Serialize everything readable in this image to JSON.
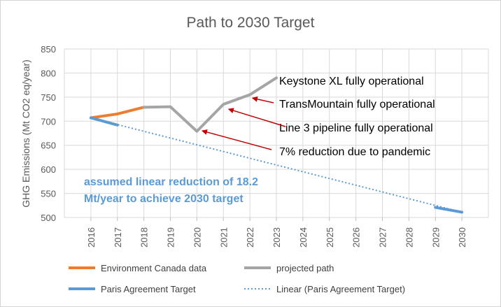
{
  "chart_data": {
    "type": "line",
    "title": "Path to 2030 Target",
    "ylabel": "GHG Emissions (Mt CO2 eq/year)",
    "xlabel": "",
    "ylim": [
      500,
      850
    ],
    "yticks": [
      "850",
      "800",
      "750",
      "700",
      "650",
      "600",
      "550",
      "500"
    ],
    "categories": [
      "2016",
      "2017",
      "2018",
      "2019",
      "2020",
      "2021",
      "2022",
      "2023",
      "2024",
      "2025",
      "2026",
      "2027",
      "2028",
      "2029",
      "2030"
    ],
    "grid": true,
    "legend_position": "bottom",
    "series": [
      {
        "name": "Environment Canada data",
        "color": "#ed7d31",
        "style": "solid",
        "width": 4,
        "x": [
          2016,
          2017,
          2018
        ],
        "y": [
          707,
          715,
          729
        ]
      },
      {
        "name": "projected path",
        "color": "#a5a5a5",
        "style": "solid",
        "width": 4,
        "x": [
          2018,
          2019,
          2020,
          2021,
          2022,
          2023
        ],
        "y": [
          729,
          730,
          679,
          735,
          755,
          790
        ]
      },
      {
        "name": "Paris Agreement Target",
        "color": "#5b9bd5",
        "style": "solid",
        "width": 4,
        "x": [
          2016,
          2017,
          2029,
          2030
        ],
        "y": [
          707,
          692,
          521,
          511
        ],
        "segments": [
          [
            0,
            1
          ],
          [
            2,
            3
          ]
        ]
      },
      {
        "name": "Linear (Paris Agreement Target)",
        "color": "#5b9bd5",
        "style": "dotted",
        "width": 2,
        "x": [
          2016,
          2030
        ],
        "y": [
          707,
          511
        ]
      }
    ],
    "annotations": [
      {
        "text": "Keystone XL fully operational",
        "arrow": false
      },
      {
        "text": "TransMountain fully operational",
        "arrow": true,
        "x": 2022.1,
        "y": 748
      },
      {
        "text": "Line 3 pipeline fully operational",
        "arrow": true,
        "x": 2021.2,
        "y": 725
      },
      {
        "text": "7% reduction due to pandemic",
        "arrow": true,
        "x": 2020.2,
        "y": 680
      }
    ],
    "note": [
      "assumed linear reduction of 18.2",
      "Mt/year to achieve 2030 target"
    ]
  }
}
